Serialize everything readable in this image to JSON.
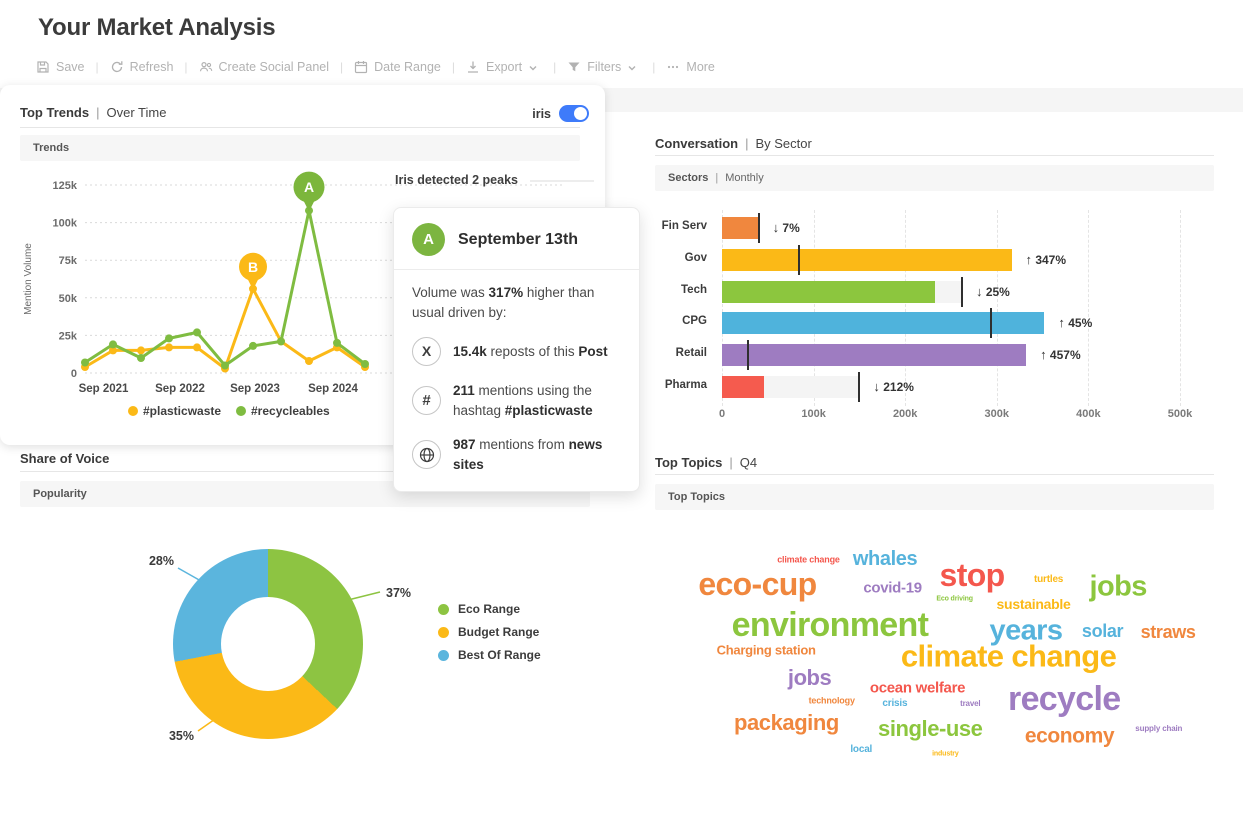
{
  "header": {
    "title": "Your Market Analysis"
  },
  "toolbar": {
    "separator": "|",
    "items": [
      {
        "label": "Save",
        "icon": "save-icon"
      },
      {
        "label": "Refresh",
        "icon": "refresh-icon"
      },
      {
        "label": "Create Social Panel",
        "icon": "people-icon"
      },
      {
        "label": "Date Range",
        "icon": "calendar-icon"
      },
      {
        "label": "Export",
        "icon": "download-icon",
        "chevron": true
      },
      {
        "label": "Filters",
        "icon": "filter-icon",
        "chevron": true
      },
      {
        "label": "More",
        "icon": "ellipsis-icon"
      }
    ]
  },
  "trends_panel": {
    "title": "Top Trends",
    "separator": "|",
    "subtitle": "Over Time",
    "iris_label": "iris",
    "iris_on": true,
    "subheader": "Trends",
    "insight": "Iris detected 2 peaks"
  },
  "peak_card": {
    "badge": "A",
    "title": "September 13th",
    "volume_prefix": "Volume was ",
    "volume_value": "317%",
    "volume_suffix": " higher than usual driven by:",
    "items": [
      {
        "icon": "x-logo-icon",
        "value": "15.4k",
        "mid": " reposts of this ",
        "bold": "Post"
      },
      {
        "icon": "hashtag-icon",
        "value": "211",
        "mid": " mentions using the hashtag ",
        "bold": "#plasticwaste"
      },
      {
        "icon": "globe-icon",
        "value": "987",
        "mid": " mentions from ",
        "bold": "news sites"
      }
    ]
  },
  "conversation_panel": {
    "title": "Conversation",
    "separator": "|",
    "subtitle": "By Sector",
    "subheader_bold": "Sectors",
    "subheader_sep": "|",
    "subheader_rest": "Monthly"
  },
  "topics_panel": {
    "title": "Top Topics",
    "separator": "|",
    "subtitle": "Q4",
    "subheader": "Top Topics"
  },
  "share_panel": {
    "title": "Share of Voice",
    "subheader": "Popularity"
  },
  "chart_data": [
    {
      "id": "trends",
      "type": "line",
      "title": "Trends",
      "ylabel": "Mention Volume",
      "ylim_k": [
        0,
        125
      ],
      "y_tick_values": [
        0,
        25,
        50,
        75,
        100,
        125
      ],
      "y_tick_labels": [
        "0",
        "25k",
        "50k",
        "75k",
        "100k",
        "125k"
      ],
      "x_tick_labels": [
        "Sep 2021",
        "Sep 2022",
        "Sep 2023",
        "Sep 2024"
      ],
      "grid": "horizontal-dotted",
      "legend_position": "bottom",
      "series": [
        {
          "name": "#plasticwaste",
          "color": "#FBB917",
          "values_k": [
            4,
            15,
            15,
            17,
            17,
            3,
            56,
            21,
            8,
            17,
            4
          ]
        },
        {
          "name": "#recycleables",
          "color": "#7FBC41",
          "values_k": [
            7,
            19,
            10,
            23,
            27,
            5,
            18,
            21,
            108,
            20,
            6
          ]
        }
      ],
      "peaks": [
        {
          "label": "B",
          "series": 0,
          "index": 6,
          "r": 14,
          "color": "#FBB917"
        },
        {
          "label": "A",
          "series": 1,
          "index": 8,
          "r": 15.5,
          "color": "#7CB63C"
        }
      ]
    },
    {
      "id": "sectors",
      "type": "bar",
      "orientation": "horizontal",
      "categories": [
        "Fin Serv",
        "Gov",
        "Tech",
        "CPG",
        "Retail",
        "Pharma"
      ],
      "values_k": [
        40,
        316,
        233,
        352,
        332,
        46
      ],
      "benchmarks_k": [
        40,
        84,
        262,
        294,
        28,
        150
      ],
      "changes": [
        {
          "dir": "down",
          "label": "7%"
        },
        {
          "dir": "up",
          "label": "347%"
        },
        {
          "dir": "down",
          "label": "25%"
        },
        {
          "dir": "up",
          "label": "45%"
        },
        {
          "dir": "up",
          "label": "457%"
        },
        {
          "dir": "down",
          "label": "212%"
        }
      ],
      "colors": [
        "#F0873E",
        "#FBB917",
        "#8CC63E",
        "#4FB3DC",
        "#9E7CC1",
        "#F55B4E"
      ],
      "x_tick_labels": [
        "0",
        "100k",
        "200k",
        "300k",
        "400k",
        "500k"
      ],
      "xlim_k": [
        0,
        500
      ]
    },
    {
      "id": "share_of_voice",
      "type": "pie",
      "donut": true,
      "start": "top",
      "direction": "clockwise",
      "legend_position": "right",
      "slices": [
        {
          "label": "Eco Range",
          "value_pct": 37,
          "color": "#8DC442"
        },
        {
          "label": "Budget Range",
          "value_pct": 35,
          "color": "#FBB917"
        },
        {
          "label": "Best Of Range",
          "value_pct": 28,
          "color": "#5BB5DD"
        }
      ]
    },
    {
      "id": "top_topics",
      "type": "wordcloud",
      "words": [
        {
          "text": "climate change",
          "size": 9,
          "color": "#F4574D",
          "x": 25.6,
          "y": 11
        },
        {
          "text": "whales",
          "size": 20,
          "color": "#56B3DC",
          "x": 38.8,
          "y": 10.7
        },
        {
          "text": "eco-cup",
          "size": 32,
          "color": "#F0873E",
          "x": 16.8,
          "y": 21.8
        },
        {
          "text": "covid-19",
          "size": 15,
          "color": "#9E7CC1",
          "x": 40.1,
          "y": 23.4
        },
        {
          "text": "stop",
          "size": 32,
          "color": "#F4574D",
          "x": 53.8,
          "y": 17.7
        },
        {
          "text": "turtles",
          "size": 10,
          "color": "#FBB917",
          "x": 67,
          "y": 20.2
        },
        {
          "text": "jobs",
          "size": 29,
          "color": "#8CC63E",
          "x": 79,
          "y": 23.1
        },
        {
          "text": "Eco driving",
          "size": 7,
          "color": "#8CC63E",
          "x": 50.8,
          "y": 28.4
        },
        {
          "text": "sustainable",
          "size": 14,
          "color": "#FBB917",
          "x": 64.4,
          "y": 30.6
        },
        {
          "text": "environment",
          "size": 34,
          "color": "#8CC63E",
          "x": 29.3,
          "y": 40
        },
        {
          "text": "years",
          "size": 29,
          "color": "#56B3DC",
          "x": 63.1,
          "y": 42.5
        },
        {
          "text": "solar",
          "size": 18,
          "color": "#56B3DC",
          "x": 76.3,
          "y": 42.5
        },
        {
          "text": "straws",
          "size": 18,
          "color": "#F0873E",
          "x": 87.6,
          "y": 43.3
        },
        {
          "text": "Charging station",
          "size": 13,
          "color": "#F0873E",
          "x": 18.3,
          "y": 51.3
        },
        {
          "text": "climate change",
          "size": 31,
          "color": "#FBB917",
          "x": 60.1,
          "y": 53.8
        },
        {
          "text": "jobs",
          "size": 22,
          "color": "#9E7CC1",
          "x": 25.8,
          "y": 63.7
        },
        {
          "text": "ocean welfare",
          "size": 15,
          "color": "#F4574D",
          "x": 44.4,
          "y": 68.2
        },
        {
          "text": "recycle",
          "size": 34,
          "color": "#9E7CC1",
          "x": 69.7,
          "y": 72.8
        },
        {
          "text": "technology",
          "size": 9,
          "color": "#F0873E",
          "x": 29.6,
          "y": 73.9
        },
        {
          "text": "crisis",
          "size": 10,
          "color": "#56B3DC",
          "x": 40.5,
          "y": 75.3
        },
        {
          "text": "travel",
          "size": 8,
          "color": "#9E7CC1",
          "x": 53.5,
          "y": 75.3
        },
        {
          "text": "packaging",
          "size": 22,
          "color": "#F0873E",
          "x": 21.8,
          "y": 83.5
        },
        {
          "text": "single-use",
          "size": 22,
          "color": "#8CC63E",
          "x": 46.6,
          "y": 86
        },
        {
          "text": "economy",
          "size": 21,
          "color": "#F0873E",
          "x": 70.6,
          "y": 89.3
        },
        {
          "text": "supply chain",
          "size": 8,
          "color": "#9E7CC1",
          "x": 86,
          "y": 86.3
        },
        {
          "text": "local",
          "size": 10,
          "color": "#56B3DC",
          "x": 34.7,
          "y": 95.7
        },
        {
          "text": "industry",
          "size": 7,
          "color": "#FBB917",
          "x": 49.2,
          "y": 97.3
        }
      ]
    }
  ]
}
